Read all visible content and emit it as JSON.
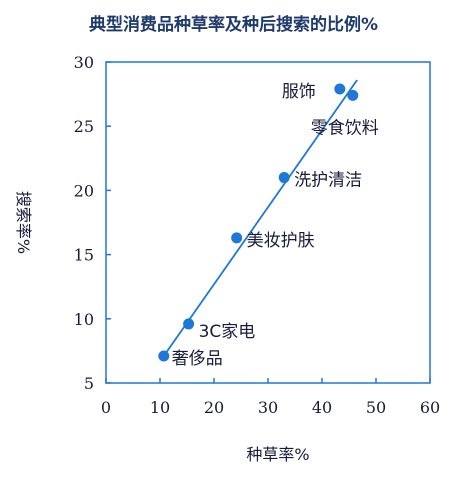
{
  "chart_data": {
    "type": "scatter",
    "title": "典型消费品种草率及种后搜索的比例%",
    "xlabel": "种草率%",
    "ylabel": "搜索率%",
    "xlim": [
      0,
      60
    ],
    "ylim": [
      5,
      30
    ],
    "xticks": [
      0,
      10,
      20,
      30,
      40,
      50,
      60
    ],
    "yticks": [
      5,
      10,
      15,
      20,
      25,
      30
    ],
    "color": "#1f77d8",
    "points": [
      {
        "label": "奢侈品",
        "x": 10.7,
        "y": 7.1
      },
      {
        "label": "3C家电",
        "x": 15.3,
        "y": 9.6
      },
      {
        "label": "美妆护肤",
        "x": 24.2,
        "y": 16.3
      },
      {
        "label": "洗护清洁",
        "x": 33.0,
        "y": 21.0
      },
      {
        "label": "服饰",
        "x": 43.3,
        "y": 27.9
      },
      {
        "label": "零食饮料",
        "x": 45.7,
        "y": 27.4
      }
    ],
    "trendline": {
      "x": [
        10.7,
        46.5
      ],
      "y": [
        7.1,
        28.6
      ]
    }
  }
}
